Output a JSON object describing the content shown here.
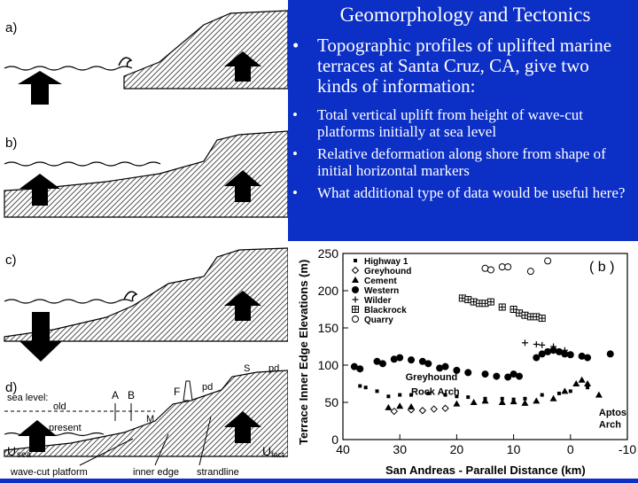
{
  "slide": {
    "title": "Geomorphology and Tectonics",
    "bullets": [
      "Topographic profiles of uplifted marine terraces at Santa Cruz, CA, give two kinds of information:"
    ],
    "sub_bullets": [
      "Total vertical uplift from height of wave-cut platforms initially at sea level",
      "Relative deformation along shore from shape of initial horizontal markers",
      "What additional type of data would be useful here?"
    ],
    "bullet_glyph": "•",
    "colors": {
      "background": "#0c2fc6",
      "text": "#ffffff"
    }
  },
  "diagram": {
    "panel_labels": [
      "a)",
      "b)",
      "c)",
      "d)"
    ],
    "annotations": {
      "sea_level": "sea level:",
      "old": "old",
      "present": "present",
      "A": "A",
      "B": "B",
      "F": "F",
      "pd": "pd",
      "S": "S",
      "M": "M",
      "U_sea": "U",
      "sea_sub": "sea",
      "U_fact": "U",
      "fact_sub": "fact",
      "wave_cut_platform": "wave-cut platform",
      "inner_edge": "inner edge",
      "strandline": "strandline"
    }
  },
  "chart_data": {
    "type": "scatter",
    "panel_label": "( b )",
    "ylabel": "Terrace Inner Edge Elevations (m)",
    "xlabel": "San Andreas - Parallel Distance (km)",
    "xlim": [
      40,
      -10
    ],
    "ylim": [
      0,
      250
    ],
    "xticks": [
      "40",
      "30",
      "20",
      "10",
      "0",
      "-10"
    ],
    "yticks": [
      "0",
      "50",
      "100",
      "150",
      "200",
      "250"
    ],
    "legend_position": "top-left",
    "series": [
      {
        "name": "Highway 1",
        "marker": "square-small",
        "points": [
          [
            37,
            72
          ],
          [
            36,
            70
          ],
          [
            34,
            65
          ],
          [
            32,
            58
          ],
          [
            30,
            60
          ],
          [
            28,
            60
          ],
          [
            25,
            62
          ],
          [
            22,
            60
          ],
          [
            20,
            58
          ],
          [
            18,
            57
          ],
          [
            15,
            55
          ],
          [
            12,
            55
          ],
          [
            10,
            54
          ],
          [
            8,
            55
          ],
          [
            5,
            60
          ],
          [
            2,
            62
          ],
          [
            0,
            65
          ],
          [
            -3,
            70
          ]
        ]
      },
      {
        "name": "Greyhound",
        "marker": "diamond-open",
        "points": [
          [
            31,
            38
          ],
          [
            28,
            40
          ],
          [
            26,
            39
          ],
          [
            24,
            41
          ],
          [
            22,
            42
          ]
        ]
      },
      {
        "name": "Cement",
        "marker": "triangle-filled",
        "points": [
          [
            32,
            43
          ],
          [
            30,
            45
          ],
          [
            28,
            44
          ],
          [
            20,
            48
          ],
          [
            17,
            50
          ],
          [
            15,
            52
          ],
          [
            12,
            50
          ],
          [
            10,
            51
          ],
          [
            8,
            49
          ],
          [
            6,
            52
          ],
          [
            3,
            55
          ],
          [
            1,
            65
          ],
          [
            -1,
            75
          ],
          [
            -2,
            80
          ],
          [
            -3,
            75
          ],
          [
            -5,
            60
          ]
        ]
      },
      {
        "name": "Western",
        "marker": "circle-filled",
        "points": [
          [
            38,
            98
          ],
          [
            37,
            95
          ],
          [
            34,
            105
          ],
          [
            33,
            102
          ],
          [
            31,
            108
          ],
          [
            30,
            110
          ],
          [
            28,
            107
          ],
          [
            26,
            105
          ],
          [
            25,
            102
          ],
          [
            23,
            96
          ],
          [
            22,
            98
          ],
          [
            20,
            93
          ],
          [
            18,
            90
          ],
          [
            15,
            88
          ],
          [
            13,
            85
          ],
          [
            11,
            84
          ],
          [
            10,
            88
          ],
          [
            9,
            85
          ],
          [
            6,
            110
          ],
          [
            5,
            115
          ],
          [
            4,
            118
          ],
          [
            3,
            120
          ],
          [
            2,
            118
          ],
          [
            1,
            115
          ],
          [
            0,
            114
          ],
          [
            -2,
            112
          ],
          [
            -3,
            110
          ],
          [
            -7,
            115
          ]
        ]
      },
      {
        "name": "Wilder",
        "marker": "plus",
        "points": [
          [
            8,
            130
          ],
          [
            6,
            128
          ],
          [
            5,
            127
          ],
          [
            3,
            125
          ],
          [
            1,
            120
          ]
        ]
      },
      {
        "name": "Blackrock",
        "marker": "square-hatched",
        "points": [
          [
            19,
            190
          ],
          [
            18,
            188
          ],
          [
            17,
            185
          ],
          [
            16,
            183
          ],
          [
            15,
            183
          ],
          [
            14,
            185
          ],
          [
            12,
            178
          ],
          [
            10,
            175
          ],
          [
            9,
            170
          ],
          [
            8,
            167
          ],
          [
            7,
            165
          ],
          [
            6,
            165
          ],
          [
            5,
            163
          ]
        ]
      },
      {
        "name": "Quarry",
        "marker": "circle-open",
        "points": [
          [
            15,
            230
          ],
          [
            14,
            228
          ],
          [
            12,
            232
          ],
          [
            11,
            232
          ],
          [
            7,
            226
          ],
          [
            4,
            240
          ]
        ]
      }
    ],
    "annotations": [
      {
        "text": "Greyhound",
        "x": 29,
        "y": 80
      },
      {
        "text": "Rock  Arch",
        "x": 28,
        "y": 60
      },
      {
        "text": "Aptos",
        "x": -5,
        "y": 32
      },
      {
        "text": "Arch",
        "x": -5,
        "y": 16
      }
    ]
  }
}
